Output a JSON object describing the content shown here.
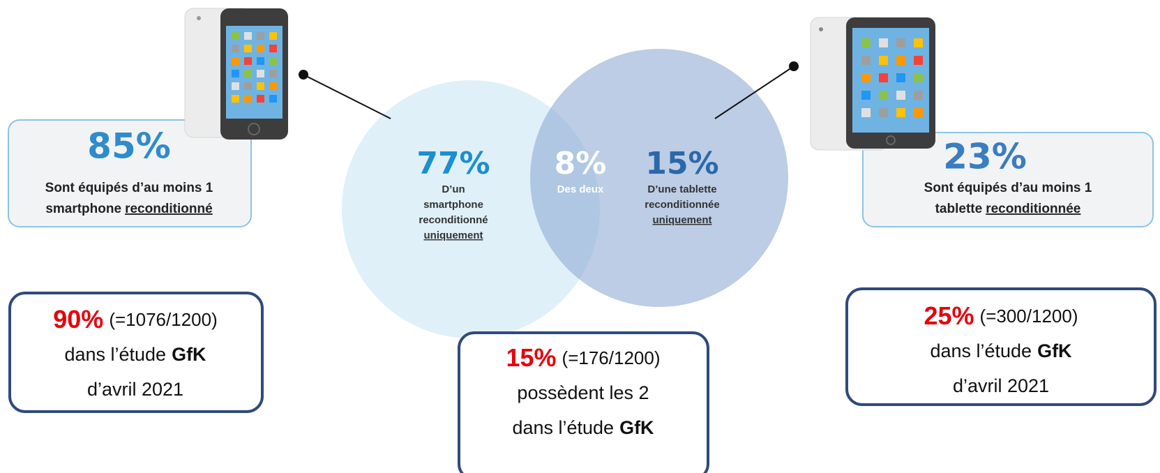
{
  "smartphone_card": {
    "percent": "85%",
    "line1": "Sont équipés d’au moins 1",
    "line2": "smartphone",
    "line2_underlined": "reconditionné"
  },
  "venn": {
    "smartphone_only": {
      "percent": "77%",
      "lines": [
        "D’un",
        "smartphone",
        "reconditionné"
      ],
      "underlined": "uniquement"
    },
    "both": {
      "percent": "8%",
      "label": "Des deux"
    },
    "tablet_only": {
      "percent": "15%",
      "lines": [
        "D’une tablette",
        "reconditionnée"
      ],
      "underlined": "uniquement"
    }
  },
  "tablet_card": {
    "percent": "23%",
    "line1": "Sont équipés d’au moins 1",
    "line2": "tablette",
    "line2_underlined": "reconditionnée"
  },
  "gfk_boxes": [
    {
      "percent": "90%",
      "ratio": "(=1076/1200)",
      "lines": [
        [
          {
            "text": "dans l’étude"
          },
          {
            "text": "GfK",
            "bold": true
          }
        ],
        [
          {
            "text": "d’avril 2021"
          }
        ]
      ]
    },
    {
      "percent": "15%",
      "ratio": "(=176/1200)",
      "lines": [
        [
          {
            "text": "possèdent les 2"
          }
        ],
        [
          {
            "text": "dans l’étude"
          },
          {
            "text": "GfK",
            "bold": true
          }
        ]
      ]
    },
    {
      "percent": "25%",
      "ratio": "(=300/1200)",
      "lines": [
        [
          {
            "text": "dans l’étude"
          },
          {
            "text": "GfK",
            "bold": true
          }
        ],
        [
          {
            "text": "d’avril 2021"
          }
        ]
      ]
    }
  ]
}
